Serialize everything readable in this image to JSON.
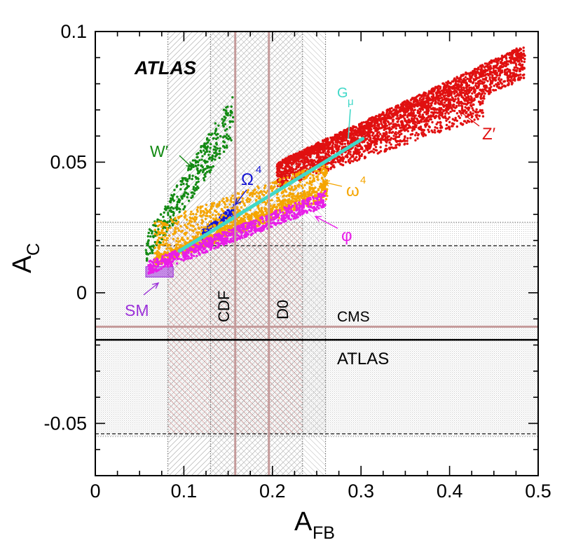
{
  "chart_data": {
    "type": "scatter",
    "title": "",
    "xlabel": {
      "main": "A",
      "sub": "FB"
    },
    "ylabel": {
      "main": "A",
      "sub": "C"
    },
    "xlim": [
      0,
      0.5
    ],
    "ylim": [
      -0.07,
      0.1
    ],
    "x_ticks": [
      0,
      0.1,
      0.2,
      0.3,
      0.4,
      0.5
    ],
    "x_tick_labels": [
      "0",
      "0.1",
      "0.2",
      "0.3",
      "0.4",
      "0.5"
    ],
    "y_ticks": [
      -0.05,
      0,
      0.05,
      0.1
    ],
    "y_tick_labels": [
      "-0.05",
      "0",
      "0.05",
      "0.1"
    ],
    "atlas_label": "ATLAS",
    "measurements": {
      "cdf": {
        "label": "CDF",
        "central": 0.158,
        "band": [
          0.13,
          0.186
        ],
        "total_band": [
          0.082,
          0.234
        ]
      },
      "d0": {
        "label": "D0",
        "central": 0.196,
        "band": [
          0.13,
          0.26
        ]
      },
      "cms": {
        "label": "CMS",
        "central": -0.013,
        "band": [
          -0.055,
          0.027
        ]
      },
      "atlas": {
        "label": "ATLAS",
        "central": -0.018,
        "band": [
          -0.054,
          0.018
        ]
      }
    },
    "sm": {
      "label": "SM",
      "x": [
        0.057,
        0.088
      ],
      "y": [
        0.006,
        0.01
      ],
      "color": "#9b30d9"
    },
    "series": [
      {
        "name": "W′",
        "label": "W′",
        "color": "#138a13",
        "regions": [
          {
            "x": [
              0.057,
              0.156
            ],
            "y_lo": [
              0.011,
              0.059
            ],
            "y_hi": [
              0.022,
              0.076
            ]
          }
        ]
      },
      {
        "name": "Ω⁴",
        "label": "Ω",
        "sup": "4",
        "color": "#1414d4",
        "regions": [
          {
            "x": [
              0.12,
              0.158
            ],
            "y_lo": [
              0.02,
              0.03
            ],
            "y_hi": [
              0.024,
              0.034
            ]
          }
        ]
      },
      {
        "name": "Z′",
        "label": "Z′",
        "color": "#e01010",
        "regions": [
          {
            "x": [
              0.205,
              0.485
            ],
            "y_lo": [
              0.047,
              0.09
            ],
            "y_hi": [
              0.05,
              0.095
            ]
          },
          {
            "x": [
              0.205,
              0.485
            ],
            "y_lo": [
              0.04,
              0.082
            ],
            "y_hi": [
              0.05,
              0.09
            ]
          },
          {
            "x": [
              0.205,
              0.44
            ],
            "y_lo": [
              0.04,
              0.067
            ],
            "y_hi": [
              0.05,
              0.082
            ]
          }
        ]
      },
      {
        "name": "ω⁴",
        "label": "ω",
        "sup": "4",
        "color": "#f5a500",
        "regions": [
          {
            "x": [
              0.067,
              0.262
            ],
            "y_lo": [
              0.01,
              0.04
            ],
            "y_hi": [
              0.027,
              0.05
            ]
          },
          {
            "x": [
              0.067,
              0.262
            ],
            "y_lo": [
              0.01,
              0.036
            ],
            "y_hi": [
              0.014,
              0.043
            ]
          }
        ]
      },
      {
        "name": "φ",
        "label": "φ",
        "color": "#e81ee8",
        "regions": [
          {
            "x": [
              0.06,
              0.26
            ],
            "y_lo": [
              0.007,
              0.033
            ],
            "y_hi": [
              0.012,
              0.039
            ]
          }
        ]
      },
      {
        "name": "Gμ",
        "label": "G",
        "sub": "μ",
        "color": "#40d8c8",
        "line": {
          "x": [
            0.095,
            0.302
          ],
          "y": [
            0.016,
            0.059
          ]
        }
      }
    ]
  }
}
